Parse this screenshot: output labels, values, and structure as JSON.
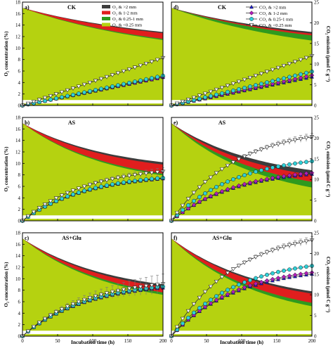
{
  "colors": {
    "gt2": "#3c3c3c",
    "r1_2": "#e01e1e",
    "r025_1": "#2f9a1e",
    "lt025": "#b5d210",
    "m_gt2": "#1f1fd0",
    "m_r1_2": "#b01fb8",
    "m_r025_1": "#2fd0d8",
    "m_lt025": "#ffffff"
  },
  "axes": {
    "left_ylabel": "O₂ concentration (%)",
    "right_ylabel": "CO₂ emission (μmol C g⁻¹)",
    "xlabel": "Incubation time (h)",
    "left_yticks": [
      "0",
      "2",
      "4",
      "6",
      "8",
      "10",
      "12",
      "14",
      "16",
      "18"
    ],
    "right_yticks": [
      "0",
      "5",
      "10",
      "15",
      "20",
      "25"
    ],
    "xticks": [
      "0",
      "50",
      "100",
      "150",
      "200"
    ]
  },
  "legend_o2": [
    "O₂ & >2 mm",
    "O₂ & 1-2 mm",
    "O₂ & 0.25-1 mm",
    "O₂ & <0.25 mm"
  ],
  "legend_co2": [
    "CO₂ & >2 mm",
    "CO₂ & 1-2 mm",
    "CO₂ & 0.25-1 mm",
    "CO₂ & <0.25 mm"
  ],
  "chart_data": [
    {
      "type": "area",
      "panel": "a)",
      "title": "CK",
      "xlim": [
        0,
        200
      ],
      "ylim": [
        0,
        18
      ],
      "y2lim": [
        0,
        25
      ],
      "o2": {
        "gt2": [
          17.0,
          12.8
        ],
        "r1_2": [
          17.0,
          12.6
        ],
        "r025_1": [
          17.0,
          11.6
        ],
        "lt025": [
          17.0,
          11.4
        ]
      },
      "co2_scale": 1.0,
      "co2_linear": true,
      "co2_end": {
        "gt2": 6.8,
        "r1_2": 6.9,
        "r025_1": 7.2,
        "lt025": 11.5
      },
      "err": 0
    },
    {
      "type": "area",
      "panel": "d)",
      "title": "CK",
      "xlim": [
        0,
        200
      ],
      "ylim": [
        0,
        18
      ],
      "y2lim": [
        0,
        25
      ],
      "o2": {
        "gt2": [
          17.0,
          12.8
        ],
        "r1_2": [
          17.0,
          12.5
        ],
        "r025_1": [
          17.0,
          12.2
        ],
        "lt025": [
          17.0,
          11.3
        ]
      },
      "co2_linear": true,
      "co2_end": {
        "gt2": 6.9,
        "r1_2": 7.3,
        "r025_1": 8.2,
        "lt025": 12.0
      },
      "err": 0
    },
    {
      "type": "area",
      "panel": "b)",
      "title": "AS",
      "xlim": [
        0,
        200
      ],
      "ylim": [
        0,
        18
      ],
      "y2lim": [
        0,
        25
      ],
      "o2": {
        "gt2": [
          17.0,
          10.2
        ],
        "r1_2": [
          17.0,
          9.8
        ],
        "r025_1": [
          17.0,
          8.2
        ],
        "lt025": [
          17.0,
          7.9
        ]
      },
      "co2_linear": false,
      "co2_end": {
        "gt2": 10.2,
        "r1_2": 10.3,
        "r025_1": 10.4,
        "lt025": 11.9
      },
      "err": 0.3
    },
    {
      "type": "area",
      "panel": "e)",
      "title": "AS",
      "xlim": [
        0,
        200
      ],
      "ylim": [
        0,
        18
      ],
      "y2lim": [
        0,
        25
      ],
      "o2": {
        "gt2": [
          17.0,
          8.8
        ],
        "r1_2": [
          17.0,
          8.0
        ],
        "r025_1": [
          17.0,
          6.8
        ],
        "lt025": [
          17.0,
          5.8
        ]
      },
      "co2_linear": false,
      "co2_end": {
        "gt2": 11.3,
        "r1_2": 11.6,
        "r025_1": 14.4,
        "lt025": 20.3
      },
      "err": 0.3
    },
    {
      "type": "area",
      "panel": "c)",
      "title": "AS+Glu",
      "xlim": [
        0,
        200
      ],
      "ylim": [
        0,
        18
      ],
      "y2lim": [
        0,
        25
      ],
      "o2": {
        "gt2": [
          17.0,
          9.0
        ],
        "r1_2": [
          17.0,
          8.6
        ],
        "r025_1": [
          17.0,
          7.6
        ],
        "lt025": [
          17.0,
          7.2
        ]
      },
      "co2_linear": false,
      "co2_end": {
        "gt2": 11.7,
        "r1_2": 11.9,
        "r025_1": 12.0,
        "lt025": 12.6
      },
      "err": 0.8
    },
    {
      "type": "area",
      "panel": "f)",
      "title": "AS+Glu",
      "xlim": [
        0,
        200
      ],
      "ylim": [
        0,
        18
      ],
      "y2lim": [
        0,
        25
      ],
      "o2": {
        "gt2": [
          17.0,
          7.8
        ],
        "r1_2": [
          17.0,
          7.4
        ],
        "r025_1": [
          17.0,
          5.8
        ],
        "lt025": [
          17.0,
          5.2
        ]
      },
      "co2_linear": false,
      "co2_end": {
        "gt2": 15.0,
        "r1_2": 15.4,
        "r025_1": 17.0,
        "lt025": 23.2
      },
      "err": 0.3
    }
  ]
}
